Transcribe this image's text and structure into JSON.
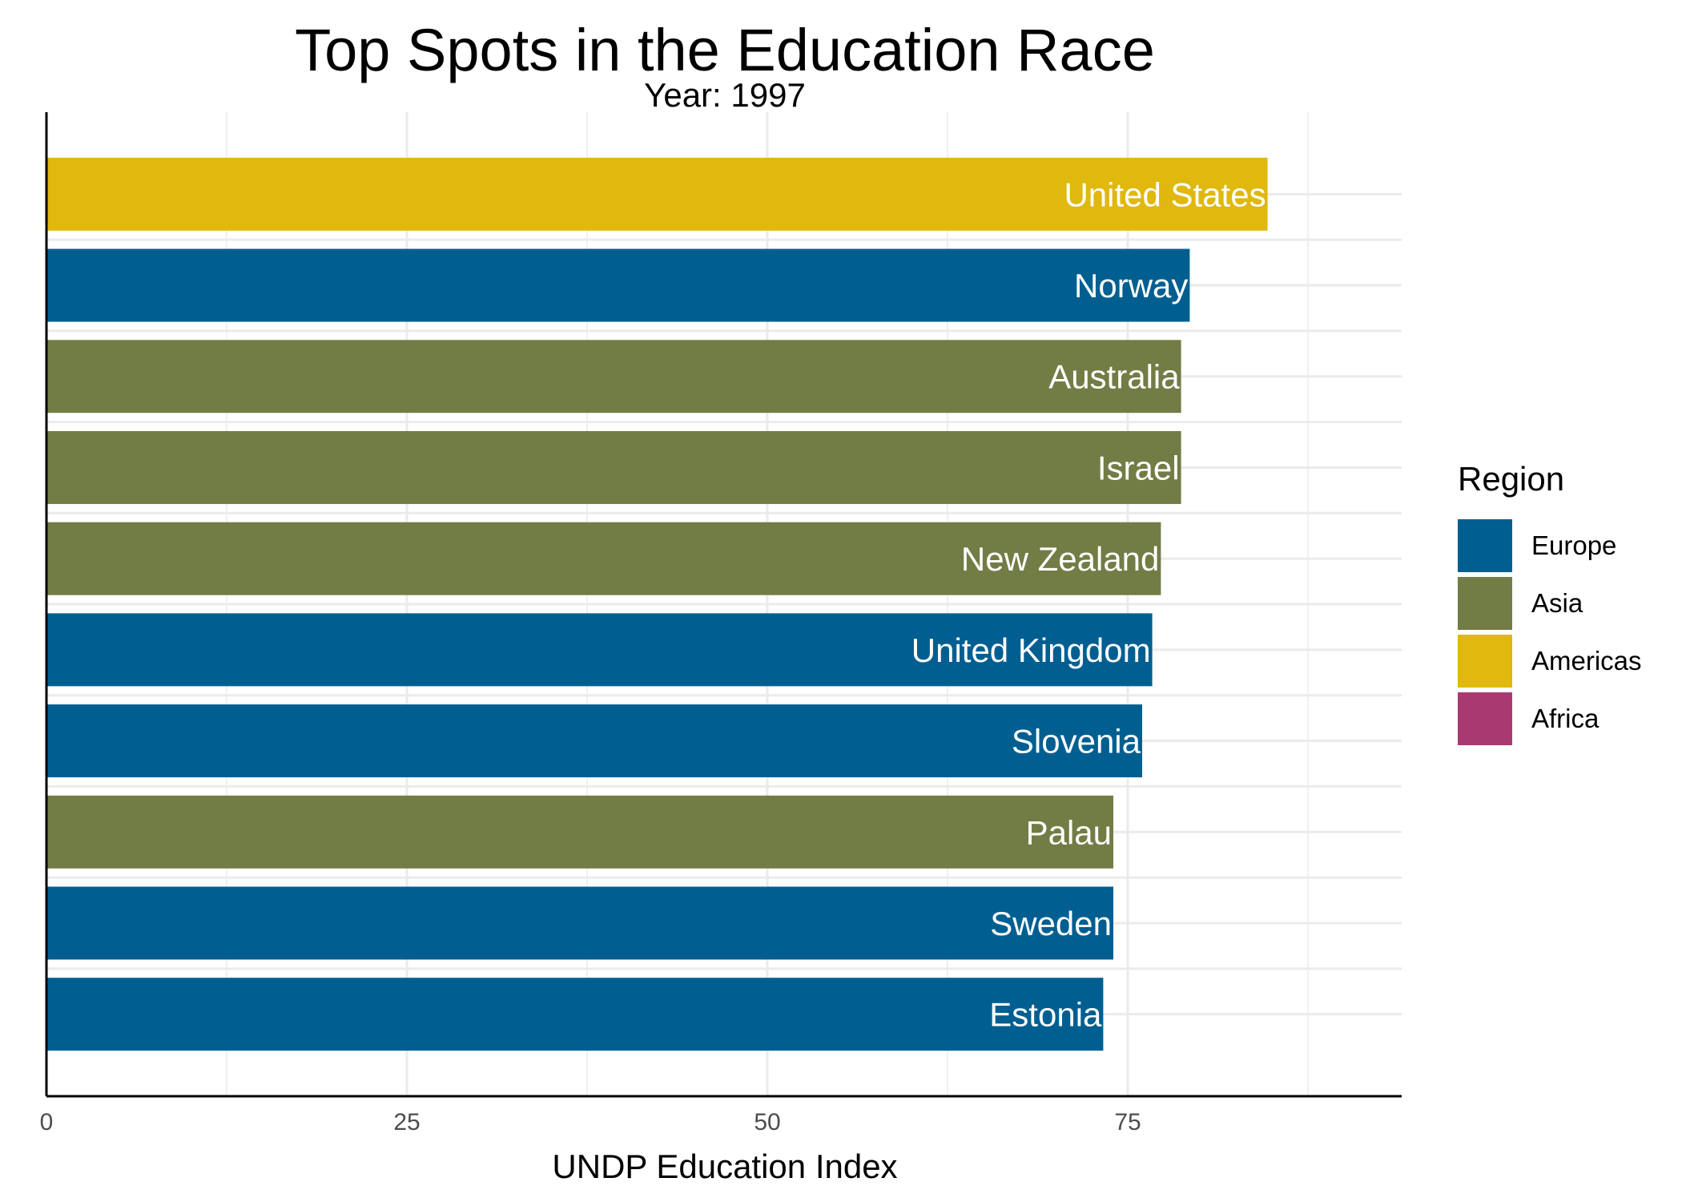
{
  "chart_data": {
    "type": "bar",
    "orientation": "horizontal",
    "title": "Top Spots in the Education Race",
    "subtitle": "Year: 1997",
    "xlabel": "UNDP Education Index",
    "ylabel": "",
    "xlim": [
      0,
      94
    ],
    "x_ticks": [
      "0",
      "25",
      "50",
      "75"
    ],
    "x_tick_values": [
      0,
      25,
      50,
      75
    ],
    "grid": true,
    "legend": {
      "title": "Region",
      "placement": "right",
      "items": [
        {
          "label": "Europe",
          "color": "#005F90"
        },
        {
          "label": "Asia",
          "color": "#727C45"
        },
        {
          "label": "Americas",
          "color": "#E0B80E"
        },
        {
          "label": "Africa",
          "color": "#A93A71"
        }
      ]
    },
    "bars": [
      {
        "country": "United States",
        "region": "Americas",
        "value": 84.7
      },
      {
        "country": "Norway",
        "region": "Europe",
        "value": 79.3
      },
      {
        "country": "Australia",
        "region": "Asia",
        "value": 78.7
      },
      {
        "country": "Israel",
        "region": "Asia",
        "value": 78.7
      },
      {
        "country": "New Zealand",
        "region": "Asia",
        "value": 77.3
      },
      {
        "country": "United Kingdom",
        "region": "Europe",
        "value": 76.7
      },
      {
        "country": "Slovenia",
        "region": "Europe",
        "value": 76.0
      },
      {
        "country": "Palau",
        "region": "Asia",
        "value": 74.0
      },
      {
        "country": "Sweden",
        "region": "Europe",
        "value": 74.0
      },
      {
        "country": "Estonia",
        "region": "Europe",
        "value": 73.3
      }
    ]
  }
}
